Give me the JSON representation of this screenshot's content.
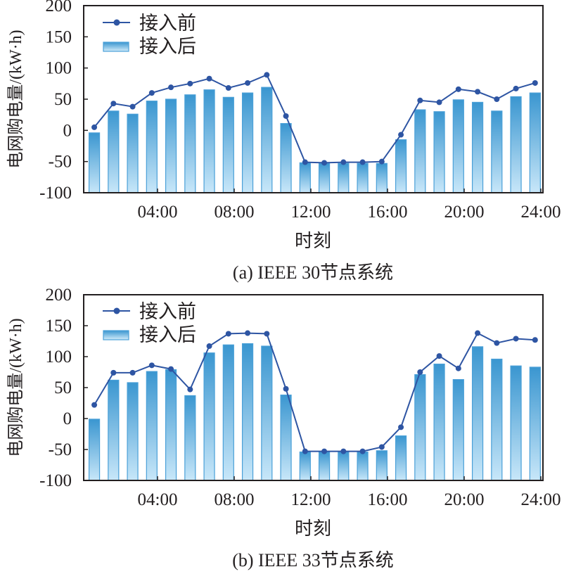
{
  "colors": {
    "line": "#2e55a3",
    "bar_top": "#3a96d0",
    "bar_bottom": "#c8e7f9",
    "bar_edge": "#4aa0d8",
    "axis": "#231f20"
  },
  "chart_data": [
    {
      "type": "bar+line",
      "caption": "(a) IEEE 30节点系统",
      "xlabel": "时刻",
      "ylabel": "电网购电量/(kW·h)",
      "ylim": [
        -100,
        200
      ],
      "yticks": [
        -100,
        -50,
        0,
        50,
        100,
        150,
        200
      ],
      "xtick_labels": [
        "04:00",
        "08:00",
        "12:00",
        "16:00",
        "20:00",
        "24:00"
      ],
      "xtick_hours": [
        4,
        8,
        12,
        16,
        20,
        24
      ],
      "x": [
        1,
        2,
        3,
        4,
        5,
        6,
        7,
        8,
        9,
        10,
        11,
        12,
        13,
        14,
        15,
        16,
        17,
        18,
        19,
        20,
        21,
        22,
        23,
        24
      ],
      "series": [
        {
          "name": "接入前",
          "kind": "line",
          "values": [
            5,
            43,
            38,
            60,
            69,
            75,
            83,
            68,
            76,
            89,
            23,
            -51,
            -52,
            -51,
            -51,
            -50,
            -7,
            48,
            45,
            66,
            62,
            50,
            67,
            76
          ]
        },
        {
          "name": "接入后",
          "kind": "bar",
          "values": [
            -4,
            31,
            26,
            47,
            50,
            57,
            65,
            53,
            60,
            69,
            11,
            -52,
            -53,
            -53,
            -53,
            -53,
            -15,
            33,
            30,
            49,
            45,
            31,
            54,
            60
          ]
        }
      ],
      "legend": "top-left"
    },
    {
      "type": "bar+line",
      "caption": "(b) IEEE 33节点系统",
      "xlabel": "时刻",
      "ylabel": "电网购电量/(kW·h)",
      "ylim": [
        -100,
        200
      ],
      "yticks": [
        -100,
        -50,
        0,
        50,
        100,
        150,
        200
      ],
      "xtick_labels": [
        "04:00",
        "08:00",
        "12:00",
        "16:00",
        "20:00",
        "24:00"
      ],
      "xtick_hours": [
        4,
        8,
        12,
        16,
        20,
        24
      ],
      "x": [
        1,
        2,
        3,
        4,
        5,
        6,
        7,
        8,
        9,
        10,
        11,
        12,
        13,
        14,
        15,
        16,
        17,
        18,
        19,
        20,
        21,
        22,
        23,
        24
      ],
      "series": [
        {
          "name": "接入前",
          "kind": "line",
          "values": [
            22,
            74,
            74,
            86,
            80,
            47,
            117,
            137,
            138,
            137,
            48,
            -53,
            -53,
            -53,
            -53,
            -46,
            -14,
            75,
            101,
            81,
            138,
            122,
            129,
            127
          ]
        },
        {
          "name": "接入后",
          "kind": "bar",
          "values": [
            -1,
            62,
            58,
            76,
            79,
            37,
            106,
            119,
            121,
            117,
            38,
            -54,
            -54,
            -54,
            -54,
            -52,
            -28,
            71,
            88,
            63,
            116,
            96,
            85,
            83
          ]
        }
      ],
      "legend": "top-left"
    }
  ]
}
